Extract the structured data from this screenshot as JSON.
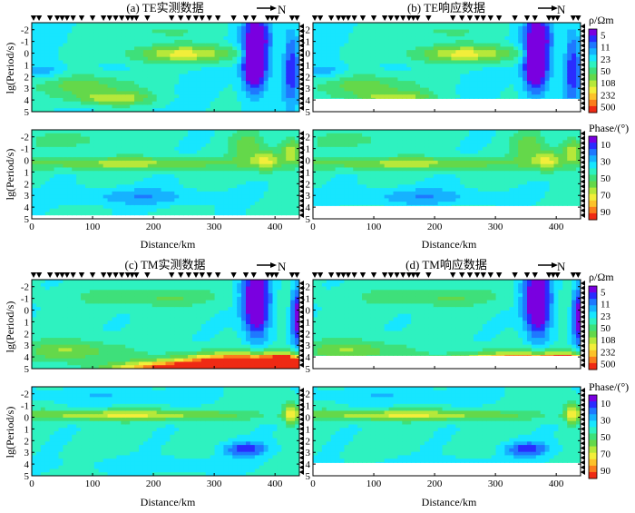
{
  "figure": {
    "panels": [
      {
        "key": "a",
        "title": "(a) TE实测数据",
        "arrow": "N"
      },
      {
        "key": "b",
        "title": "(b) TE响应数据",
        "arrow": "N"
      },
      {
        "key": "c",
        "title": "(c) TM实测数据",
        "arrow": "N"
      },
      {
        "key": "d",
        "title": "(d) TM响应数据",
        "arrow": "N"
      }
    ],
    "ylabel": "lg(Period/s)",
    "xlabel": "Distance/km",
    "rho_colorbar": {
      "title": "ρ/Ωm",
      "ticks": [
        "500",
        "232",
        "108",
        "50",
        "23",
        "11",
        "5"
      ]
    },
    "phase_colorbar": {
      "title": "Phase/(°)",
      "ticks": [
        "90",
        "70",
        "50",
        "30",
        "10"
      ]
    }
  },
  "chart_data": [
    {
      "type": "heatmap",
      "id": "te-observed",
      "title": "(a) TE实测数据",
      "xlabel": "Distance/km",
      "ylabel": "lg(Period/s)",
      "xlim": [
        0,
        440
      ],
      "x_ticks": [
        0,
        100,
        200,
        300,
        400
      ],
      "rho": {
        "ylim": [
          5,
          -2.6
        ],
        "y_ticks": [
          -2,
          -1,
          0,
          1,
          2,
          3,
          4,
          5
        ],
        "colorbar": "rho",
        "max_period": 5
      },
      "phase": {
        "ylim": [
          5,
          -2.6
        ],
        "y_ticks": [
          -2,
          -1,
          0,
          1,
          2,
          3,
          4,
          5
        ],
        "colorbar": "phase",
        "max_period": 4.7
      },
      "stations_km": [
        3,
        12,
        30,
        42,
        50,
        58,
        68,
        82,
        100,
        118,
        128,
        138,
        148,
        158,
        165,
        172,
        190,
        230,
        245,
        258,
        270,
        280,
        292,
        306,
        332,
        352,
        365,
        388,
        395,
        402,
        428,
        436
      ]
    },
    {
      "type": "heatmap",
      "id": "te-response",
      "title": "(b) TE响应数据",
      "xlabel": "Distance/km",
      "ylabel": "lg(Period/s)",
      "xlim": [
        0,
        440
      ],
      "x_ticks": [
        0,
        100,
        200,
        300,
        400
      ],
      "rho": {
        "ylim": [
          5,
          -2.6
        ],
        "y_ticks": [
          -2,
          -1,
          0,
          1,
          2,
          3,
          4,
          5
        ],
        "colorbar": "rho",
        "max_period": 3.9
      },
      "phase": {
        "ylim": [
          5,
          -2.6
        ],
        "y_ticks": [
          -2,
          -1,
          0,
          1,
          2,
          3,
          4,
          5
        ],
        "colorbar": "phase",
        "max_period": 3.9
      },
      "stations_km": [
        3,
        12,
        30,
        42,
        50,
        58,
        68,
        82,
        100,
        118,
        128,
        138,
        148,
        158,
        165,
        172,
        190,
        230,
        245,
        258,
        270,
        280,
        292,
        306,
        332,
        352,
        365,
        388,
        395,
        402,
        428,
        436
      ]
    },
    {
      "type": "heatmap",
      "id": "tm-observed",
      "title": "(c) TM实测数据",
      "xlabel": "Distance/km",
      "ylabel": "lg(Period/s)",
      "xlim": [
        0,
        440
      ],
      "x_ticks": [
        0,
        100,
        200,
        300,
        400
      ],
      "rho": {
        "ylim": [
          5,
          -2.6
        ],
        "y_ticks": [
          -2,
          -1,
          0,
          1,
          2,
          3,
          4,
          5
        ],
        "colorbar": "rho",
        "max_period": 5
      },
      "phase": {
        "ylim": [
          5,
          -2.6
        ],
        "y_ticks": [
          -2,
          -1,
          0,
          1,
          2,
          3,
          4,
          5
        ],
        "colorbar": "phase",
        "max_period": 5
      },
      "stations_km": [
        3,
        12,
        30,
        42,
        50,
        58,
        68,
        82,
        100,
        118,
        128,
        138,
        148,
        158,
        165,
        172,
        190,
        230,
        245,
        258,
        270,
        280,
        292,
        306,
        332,
        352,
        365,
        388,
        395,
        402,
        428,
        436
      ]
    },
    {
      "type": "heatmap",
      "id": "tm-response",
      "title": "(d) TM响应数据",
      "xlabel": "Distance/km",
      "ylabel": "lg(Period/s)",
      "xlim": [
        0,
        440
      ],
      "x_ticks": [
        0,
        100,
        200,
        300,
        400
      ],
      "rho": {
        "ylim": [
          5,
          -2.6
        ],
        "y_ticks": [
          -2,
          -1,
          0,
          1,
          2,
          3,
          4,
          5
        ],
        "colorbar": "rho",
        "max_period": 3.9
      },
      "phase": {
        "ylim": [
          5,
          -2.6
        ],
        "y_ticks": [
          -2,
          -1,
          0,
          1,
          2,
          3,
          4,
          5
        ],
        "colorbar": "phase",
        "max_period": 3.9
      },
      "stations_km": [
        3,
        12,
        30,
        42,
        50,
        58,
        68,
        82,
        100,
        118,
        128,
        138,
        148,
        158,
        165,
        172,
        190,
        230,
        245,
        258,
        270,
        280,
        292,
        306,
        332,
        352,
        365,
        388,
        395,
        402,
        428,
        436
      ]
    }
  ]
}
